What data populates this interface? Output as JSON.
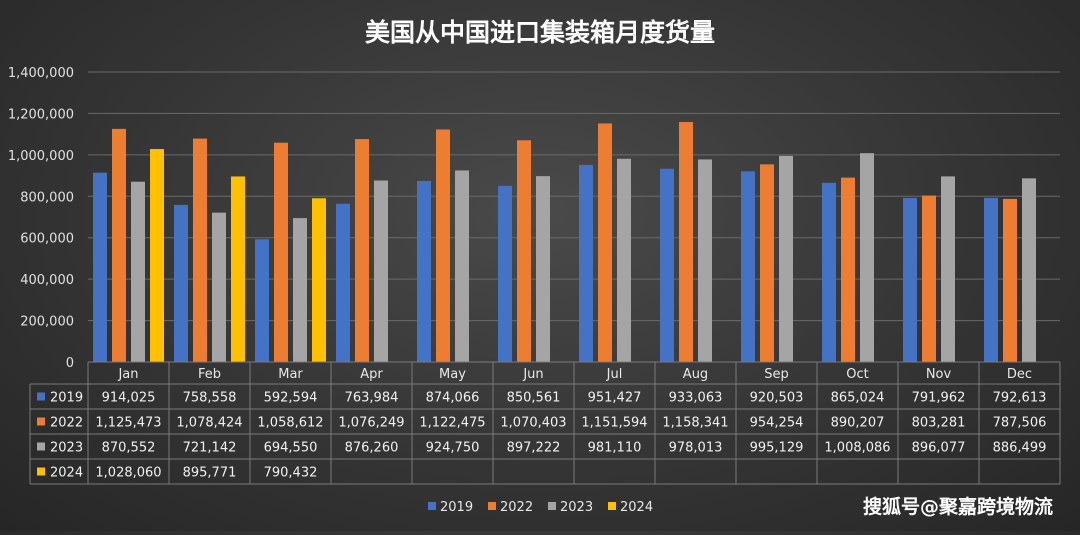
{
  "chart_data": {
    "type": "bar",
    "title": "美国从中国进口集装箱月度货量",
    "categories": [
      "Jan",
      "Feb",
      "Mar",
      "Apr",
      "May",
      "Jun",
      "Jul",
      "Aug",
      "Sep",
      "Oct",
      "Nov",
      "Dec"
    ],
    "series": [
      {
        "name": "2019",
        "color": "#4472c4",
        "values": [
          914025,
          758558,
          592594,
          763984,
          874066,
          850561,
          951427,
          933063,
          920503,
          865024,
          791962,
          792613
        ],
        "labels": [
          "914,025",
          "758,558",
          "592,594",
          "763,984",
          "874,066",
          "850,561",
          "951,427",
          "933,063",
          "920,503",
          "865,024",
          "791,962",
          "792,613"
        ]
      },
      {
        "name": "2022",
        "color": "#ed7d31",
        "values": [
          1125473,
          1078424,
          1058612,
          1076249,
          1122475,
          1070403,
          1151594,
          1158341,
          954254,
          890207,
          803281,
          787506
        ],
        "labels": [
          "1,125,473",
          "1,078,424",
          "1,058,612",
          "1,076,249",
          "1,122,475",
          "1,070,403",
          "1,151,594",
          "1,158,341",
          "954,254",
          "890,207",
          "803,281",
          "787,506"
        ]
      },
      {
        "name": "2023",
        "color": "#a5a5a5",
        "values": [
          870552,
          721142,
          694550,
          876260,
          924750,
          897222,
          981110,
          978013,
          995129,
          1008086,
          896077,
          886499
        ],
        "labels": [
          "870,552",
          "721,142",
          "694,550",
          "876,260",
          "924,750",
          "897,222",
          "981,110",
          "978,013",
          "995,129",
          "1,008,086",
          "896,077",
          "886,499"
        ]
      },
      {
        "name": "2024",
        "color": "#ffc000",
        "values": [
          1028060,
          895771,
          790432,
          null,
          null,
          null,
          null,
          null,
          null,
          null,
          null,
          null
        ],
        "labels": [
          "1,028,060",
          "895,771",
          "790,432",
          "",
          "",
          "",
          "",
          "",
          "",
          "",
          "",
          ""
        ]
      }
    ],
    "yticks": [
      "0",
      "200,000",
      "400,000",
      "600,000",
      "800,000",
      "1,000,000",
      "1,200,000",
      "1,400,000"
    ],
    "ylim": [
      0,
      1400000
    ],
    "grid": true,
    "legend": "bottom-center",
    "data_table": true
  },
  "watermark": "搜狐号@聚嘉跨境物流"
}
